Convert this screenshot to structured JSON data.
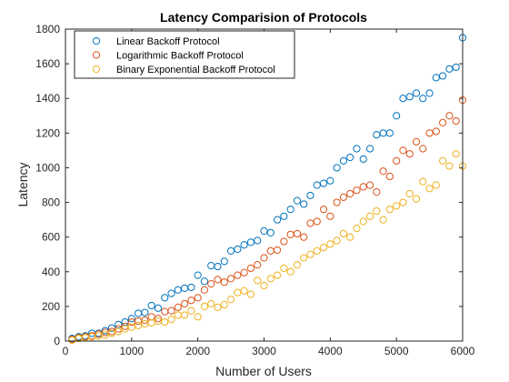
{
  "chart_data": {
    "type": "scatter",
    "title": "Latency Comparision of Protocols",
    "xlabel": "Number of Users",
    "ylabel": "Latency",
    "xlim": [
      0,
      6000
    ],
    "ylim": [
      0,
      1800
    ],
    "xticks": [
      0,
      1000,
      2000,
      3000,
      4000,
      5000,
      6000
    ],
    "yticks": [
      0,
      200,
      400,
      600,
      800,
      1000,
      1200,
      1400,
      1600,
      1800
    ],
    "grid": false,
    "legend_position": "top-left",
    "marker": "circle-open",
    "series": [
      {
        "name": "Linear Backoff Protocol",
        "color": "#0072BD",
        "x": [
          100,
          200,
          300,
          400,
          500,
          600,
          700,
          800,
          900,
          1000,
          1100,
          1200,
          1300,
          1400,
          1500,
          1600,
          1700,
          1800,
          1900,
          2000,
          2100,
          2200,
          2300,
          2400,
          2500,
          2600,
          2700,
          2800,
          2900,
          3000,
          3100,
          3200,
          3300,
          3400,
          3500,
          3600,
          3700,
          3800,
          3900,
          4000,
          4100,
          4200,
          4300,
          4400,
          4500,
          4600,
          4700,
          4800,
          4900,
          5000,
          5100,
          5200,
          5300,
          5400,
          5500,
          5600,
          5700,
          5800,
          5900,
          6000
        ],
        "y": [
          15,
          25,
          30,
          45,
          45,
          60,
          75,
          95,
          110,
          130,
          160,
          165,
          205,
          190,
          250,
          275,
          295,
          305,
          310,
          380,
          345,
          435,
          430,
          460,
          520,
          530,
          555,
          570,
          580,
          635,
          625,
          700,
          720,
          760,
          810,
          790,
          840,
          900,
          910,
          925,
          1000,
          1040,
          1060,
          1110,
          1050,
          1110,
          1190,
          1200,
          1200,
          1300,
          1400,
          1410,
          1430,
          1400,
          1430,
          1520,
          1530,
          1570,
          1580,
          1750
        ]
      },
      {
        "name": "Logarithmic Backoff Protocol",
        "color": "#D95319",
        "x": [
          100,
          200,
          300,
          400,
          500,
          600,
          700,
          800,
          900,
          1000,
          1100,
          1200,
          1300,
          1400,
          1500,
          1600,
          1700,
          1800,
          1900,
          2000,
          2100,
          2200,
          2300,
          2400,
          2500,
          2600,
          2700,
          2800,
          2900,
          3000,
          3100,
          3200,
          3300,
          3400,
          3500,
          3600,
          3700,
          3800,
          3900,
          4000,
          4100,
          4200,
          4300,
          4400,
          4500,
          4600,
          4700,
          4800,
          4900,
          5000,
          5100,
          5200,
          5300,
          5400,
          5500,
          5600,
          5700,
          5800,
          5900,
          6000
        ],
        "y": [
          10,
          20,
          25,
          30,
          40,
          50,
          55,
          70,
          85,
          110,
          115,
          120,
          140,
          130,
          170,
          175,
          195,
          215,
          235,
          250,
          295,
          330,
          355,
          340,
          360,
          380,
          395,
          420,
          440,
          480,
          520,
          525,
          575,
          615,
          620,
          600,
          680,
          690,
          760,
          720,
          800,
          830,
          850,
          870,
          890,
          900,
          860,
          980,
          950,
          1040,
          1100,
          1080,
          1150,
          1110,
          1200,
          1210,
          1260,
          1300,
          1270,
          1390
        ]
      },
      {
        "name": "Binary Exponential Backoff Protocol",
        "color": "#EDB120",
        "x": [
          100,
          200,
          300,
          400,
          500,
          600,
          700,
          800,
          900,
          1000,
          1100,
          1200,
          1300,
          1400,
          1500,
          1600,
          1700,
          1800,
          1900,
          2000,
          2100,
          2200,
          2300,
          2400,
          2500,
          2600,
          2700,
          2800,
          2900,
          3000,
          3100,
          3200,
          3300,
          3400,
          3500,
          3600,
          3700,
          3800,
          3900,
          4000,
          4100,
          4200,
          4300,
          4400,
          4500,
          4600,
          4700,
          4800,
          4900,
          5000,
          5100,
          5200,
          5300,
          5400,
          5500,
          5600,
          5700,
          5800,
          5900,
          6000
        ],
        "y": [
          5,
          15,
          20,
          25,
          30,
          35,
          45,
          55,
          70,
          80,
          90,
          100,
          105,
          115,
          110,
          125,
          150,
          150,
          175,
          140,
          200,
          215,
          195,
          210,
          240,
          280,
          290,
          270,
          350,
          320,
          360,
          380,
          420,
          400,
          440,
          480,
          500,
          520,
          540,
          560,
          580,
          620,
          600,
          650,
          690,
          720,
          750,
          700,
          760,
          780,
          800,
          850,
          820,
          920,
          880,
          900,
          1040,
          1010,
          1080,
          1010
        ]
      }
    ]
  }
}
